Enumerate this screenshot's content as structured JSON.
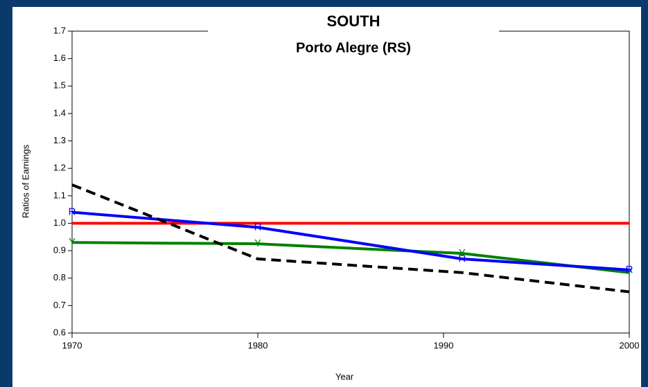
{
  "chart_data": {
    "type": "line",
    "title": "SOUTH",
    "subtitle": "Porto Alegre (RS)",
    "xlabel": "Year",
    "ylabel": "Ratios of Earnings",
    "x": [
      1970,
      1980,
      1991,
      2000
    ],
    "xlim": [
      1970,
      2000
    ],
    "xticks": [
      1970,
      1980,
      1990,
      2000
    ],
    "ylim": [
      0.6,
      1.7
    ],
    "yticks": [
      0.6,
      0.7,
      0.8,
      0.9,
      {
        "value": 1,
        "label": "1.0"
      },
      1.1,
      1.2,
      1.3,
      1.4,
      1.5,
      1.6,
      1.7
    ],
    "series": [
      {
        "color": "#ff0000",
        "values": [
          1,
          1,
          1,
          1
        ]
      },
      {
        "color": "#008000",
        "marker": "Y",
        "values": [
          0.93,
          0.925,
          0.89,
          0.82
        ]
      },
      {
        "color": "#0000ff",
        "marker": "R",
        "values": [
          1.04,
          0.985,
          0.87,
          0.83
        ]
      },
      {
        "color": "#000000",
        "dashed": true,
        "values": [
          1.14,
          0.87,
          0.82,
          0.75
        ]
      }
    ]
  }
}
